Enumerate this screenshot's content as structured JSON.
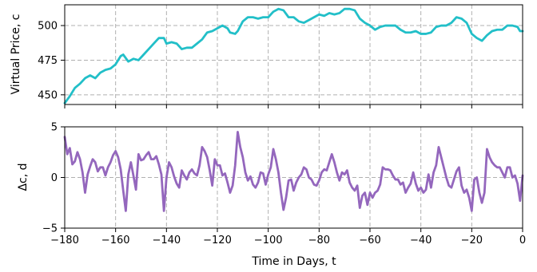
{
  "chart_data": [
    {
      "type": "line",
      "title": "",
      "ylabel": "Virtual Price, c",
      "xlim": [
        -180,
        0
      ],
      "ylim": [
        443,
        515
      ],
      "grid": true,
      "x_ticks": [
        -180,
        -160,
        -140,
        -120,
        -100,
        -80,
        -60,
        -40,
        -20,
        0
      ],
      "y_ticks": [
        450,
        475,
        500
      ],
      "y_tick_labels": [
        "450",
        "475",
        "500"
      ],
      "series": [
        {
          "color": "#22bfc8",
          "points": [
            [
              -180,
              444
            ],
            [
              -178,
              449
            ],
            [
              -176,
              455
            ],
            [
              -174,
              458
            ],
            [
              -172,
              462
            ],
            [
              -170,
              464
            ],
            [
              -168,
              462
            ],
            [
              -166,
              466
            ],
            [
              -164,
              468
            ],
            [
              -162,
              469
            ],
            [
              -160,
              472
            ],
            [
              -158,
              478
            ],
            [
              -157,
              479
            ],
            [
              -155,
              474
            ],
            [
              -153,
              476
            ],
            [
              -151,
              475
            ],
            [
              -149,
              479
            ],
            [
              -147,
              483
            ],
            [
              -145,
              487
            ],
            [
              -143,
              491
            ],
            [
              -141,
              491
            ],
            [
              -140,
              487
            ],
            [
              -138,
              488
            ],
            [
              -136,
              487
            ],
            [
              -134,
              483
            ],
            [
              -132,
              484
            ],
            [
              -130,
              484
            ],
            [
              -128,
              487
            ],
            [
              -126,
              490
            ],
            [
              -124,
              495
            ],
            [
              -122,
              496
            ],
            [
              -120,
              498
            ],
            [
              -118,
              500
            ],
            [
              -116,
              498
            ],
            [
              -115,
              495
            ],
            [
              -113,
              494
            ],
            [
              -112,
              496
            ],
            [
              -110,
              503
            ],
            [
              -108,
              506
            ],
            [
              -106,
              506
            ],
            [
              -104,
              505
            ],
            [
              -102,
              506
            ],
            [
              -100,
              506
            ],
            [
              -98,
              510
            ],
            [
              -96,
              512
            ],
            [
              -94,
              511
            ],
            [
              -92,
              506
            ],
            [
              -90,
              506
            ],
            [
              -88,
              503
            ],
            [
              -86,
              502
            ],
            [
              -84,
              504
            ],
            [
              -82,
              506
            ],
            [
              -80,
              508
            ],
            [
              -78,
              507
            ],
            [
              -76,
              509
            ],
            [
              -74,
              508
            ],
            [
              -72,
              509
            ],
            [
              -70,
              512
            ],
            [
              -68,
              512
            ],
            [
              -66,
              511
            ],
            [
              -64,
              505
            ],
            [
              -62,
              502
            ],
            [
              -60,
              500
            ],
            [
              -58,
              497
            ],
            [
              -56,
              499
            ],
            [
              -54,
              500
            ],
            [
              -52,
              500
            ],
            [
              -50,
              500
            ],
            [
              -48,
              497
            ],
            [
              -46,
              495
            ],
            [
              -44,
              495
            ],
            [
              -42,
              496
            ],
            [
              -40,
              494
            ],
            [
              -38,
              494
            ],
            [
              -36,
              495
            ],
            [
              -34,
              499
            ],
            [
              -32,
              500
            ],
            [
              -30,
              500
            ],
            [
              -28,
              502
            ],
            [
              -26,
              506
            ],
            [
              -24,
              505
            ],
            [
              -22,
              502
            ],
            [
              -20,
              494
            ],
            [
              -18,
              491
            ],
            [
              -16,
              489
            ],
            [
              -14,
              493
            ],
            [
              -12,
              496
            ],
            [
              -10,
              497
            ],
            [
              -8,
              497
            ],
            [
              -6,
              500
            ],
            [
              -4,
              500
            ],
            [
              -2,
              499
            ],
            [
              -1,
              496
            ],
            [
              0,
              496
            ]
          ]
        }
      ]
    },
    {
      "type": "line",
      "title": "",
      "xlabel": "Time in Days, t",
      "ylabel": "Δc, d",
      "xlim": [
        -180,
        0
      ],
      "ylim": [
        -5,
        5
      ],
      "grid": true,
      "x_ticks": [
        -180,
        -160,
        -140,
        -120,
        -100,
        -80,
        -60,
        -40,
        -20,
        0
      ],
      "x_tick_labels": [
        "−180",
        "−160",
        "−140",
        "−120",
        "−100",
        "−80",
        "−60",
        "−40",
        "−20",
        "0"
      ],
      "y_ticks": [
        -5,
        0,
        5
      ],
      "y_tick_labels": [
        "−5",
        "0",
        "5"
      ],
      "series": [
        {
          "color": "#9467bd",
          "points": [
            [
              -180,
              4.0
            ],
            [
              -179,
              2.3
            ],
            [
              -178,
              2.9
            ],
            [
              -177,
              1.3
            ],
            [
              -176,
              1.6
            ],
            [
              -175,
              2.5
            ],
            [
              -174,
              1.8
            ],
            [
              -173,
              0.5
            ],
            [
              -172,
              -1.5
            ],
            [
              -171,
              0.3
            ],
            [
              -170,
              1.1
            ],
            [
              -169,
              1.8
            ],
            [
              -168,
              1.5
            ],
            [
              -167,
              0.6
            ],
            [
              -166,
              1.0
            ],
            [
              -165,
              1.0
            ],
            [
              -164,
              0.2
            ],
            [
              -163,
              1.0
            ],
            [
              -162,
              1.5
            ],
            [
              -161,
              2.2
            ],
            [
              -160,
              2.6
            ],
            [
              -159,
              2.0
            ],
            [
              -158,
              0.8
            ],
            [
              -157,
              -1.3
            ],
            [
              -156,
              -3.3
            ],
            [
              -155,
              0.3
            ],
            [
              -154,
              1.5
            ],
            [
              -153,
              0.2
            ],
            [
              -152,
              -1.2
            ],
            [
              -151,
              2.3
            ],
            [
              -150,
              1.7
            ],
            [
              -149,
              1.8
            ],
            [
              -148,
              2.2
            ],
            [
              -147,
              2.5
            ],
            [
              -146,
              1.8
            ],
            [
              -145,
              1.8
            ],
            [
              -144,
              2.1
            ],
            [
              -143,
              1.3
            ],
            [
              -142,
              0.3
            ],
            [
              -141,
              -3.3
            ],
            [
              -140,
              0.0
            ],
            [
              -139,
              1.5
            ],
            [
              -138,
              1.0
            ],
            [
              -137,
              0.1
            ],
            [
              -136,
              -0.6
            ],
            [
              -135,
              -1.0
            ],
            [
              -134,
              0.7
            ],
            [
              -133,
              0.2
            ],
            [
              -132,
              -0.2
            ],
            [
              -131,
              0.5
            ],
            [
              -130,
              0.8
            ],
            [
              -129,
              0.4
            ],
            [
              -128,
              0.2
            ],
            [
              -127,
              1.2
            ],
            [
              -126,
              3.0
            ],
            [
              -125,
              2.6
            ],
            [
              -124,
              2.0
            ],
            [
              -123,
              0.7
            ],
            [
              -122,
              -0.8
            ],
            [
              -121,
              1.8
            ],
            [
              -120,
              1.2
            ],
            [
              -119,
              1.2
            ],
            [
              -118,
              0.2
            ],
            [
              -117,
              0.4
            ],
            [
              -116,
              -0.5
            ],
            [
              -115,
              -1.5
            ],
            [
              -114,
              -0.8
            ],
            [
              -113,
              1.2
            ],
            [
              -112,
              4.5
            ],
            [
              -111,
              3.0
            ],
            [
              -110,
              2.0
            ],
            [
              -109,
              0.5
            ],
            [
              -108,
              -0.3
            ],
            [
              -107,
              0.1
            ],
            [
              -106,
              -0.7
            ],
            [
              -105,
              -1.0
            ],
            [
              -104,
              -0.5
            ],
            [
              -103,
              0.5
            ],
            [
              -102,
              0.4
            ],
            [
              -101,
              -0.7
            ],
            [
              -100,
              0.3
            ],
            [
              -99,
              1.0
            ],
            [
              -98,
              2.8
            ],
            [
              -97,
              1.8
            ],
            [
              -96,
              0.5
            ],
            [
              -95,
              -1.5
            ],
            [
              -94,
              -3.2
            ],
            [
              -93,
              -2.0
            ],
            [
              -92,
              -0.3
            ],
            [
              -91,
              -0.2
            ],
            [
              -90,
              -1.3
            ],
            [
              -89,
              -0.5
            ],
            [
              -88,
              0.0
            ],
            [
              -87,
              0.3
            ],
            [
              -86,
              1.0
            ],
            [
              -85,
              0.8
            ],
            [
              -84,
              0.0
            ],
            [
              -83,
              -0.2
            ],
            [
              -82,
              -0.7
            ],
            [
              -81,
              -0.8
            ],
            [
              -80,
              -0.3
            ],
            [
              -79,
              0.5
            ],
            [
              -78,
              0.8
            ],
            [
              -77,
              0.7
            ],
            [
              -76,
              1.5
            ],
            [
              -75,
              2.3
            ],
            [
              -74,
              1.5
            ],
            [
              -73,
              0.5
            ],
            [
              -72,
              -0.3
            ],
            [
              -71,
              0.5
            ],
            [
              -70,
              0.3
            ],
            [
              -69,
              0.7
            ],
            [
              -68,
              -0.5
            ],
            [
              -67,
              -1.0
            ],
            [
              -66,
              -1.3
            ],
            [
              -65,
              -0.8
            ],
            [
              -64,
              -3.0
            ],
            [
              -63,
              -1.8
            ],
            [
              -62,
              -1.5
            ],
            [
              -61,
              -2.7
            ],
            [
              -60,
              -1.5
            ],
            [
              -59,
              -2.0
            ],
            [
              -58,
              -1.5
            ],
            [
              -57,
              -1.3
            ],
            [
              -56,
              -0.7
            ],
            [
              -55,
              1.0
            ],
            [
              -54,
              0.8
            ],
            [
              -53,
              0.8
            ],
            [
              -52,
              0.7
            ],
            [
              -51,
              0.2
            ],
            [
              -50,
              -0.2
            ],
            [
              -49,
              -0.2
            ],
            [
              -48,
              -0.7
            ],
            [
              -47,
              -0.5
            ],
            [
              -46,
              -1.5
            ],
            [
              -45,
              -1.0
            ],
            [
              -44,
              -0.6
            ],
            [
              -43,
              0.5
            ],
            [
              -42,
              -0.6
            ],
            [
              -41,
              -1.3
            ],
            [
              -40,
              -1.0
            ],
            [
              -39,
              -1.5
            ],
            [
              -38,
              -1.2
            ],
            [
              -37,
              0.3
            ],
            [
              -36,
              -1.0
            ],
            [
              -35,
              0.5
            ],
            [
              -34,
              1.2
            ],
            [
              -33,
              3.0
            ],
            [
              -32,
              2.0
            ],
            [
              -31,
              1.0
            ],
            [
              -30,
              0.0
            ],
            [
              -29,
              -0.8
            ],
            [
              -28,
              -1.0
            ],
            [
              -27,
              -0.2
            ],
            [
              -26,
              0.6
            ],
            [
              -25,
              1.0
            ],
            [
              -24,
              -0.8
            ],
            [
              -23,
              -1.5
            ],
            [
              -22,
              -1.2
            ],
            [
              -21,
              -2.0
            ],
            [
              -20,
              -3.3
            ],
            [
              -19,
              -0.2
            ],
            [
              -18,
              0.0
            ],
            [
              -17,
              -1.5
            ],
            [
              -16,
              -2.5
            ],
            [
              -15,
              -1.5
            ],
            [
              -14,
              2.8
            ],
            [
              -13,
              2.0
            ],
            [
              -12,
              1.5
            ],
            [
              -11,
              1.2
            ],
            [
              -10,
              1.0
            ],
            [
              -9,
              1.0
            ],
            [
              -8,
              0.5
            ],
            [
              -7,
              0.0
            ],
            [
              -6,
              1.0
            ],
            [
              -5,
              1.0
            ],
            [
              -4,
              0.0
            ],
            [
              -3,
              0.2
            ],
            [
              -2,
              -0.6
            ],
            [
              -1,
              -2.3
            ],
            [
              0,
              0.2
            ]
          ]
        }
      ]
    }
  ]
}
